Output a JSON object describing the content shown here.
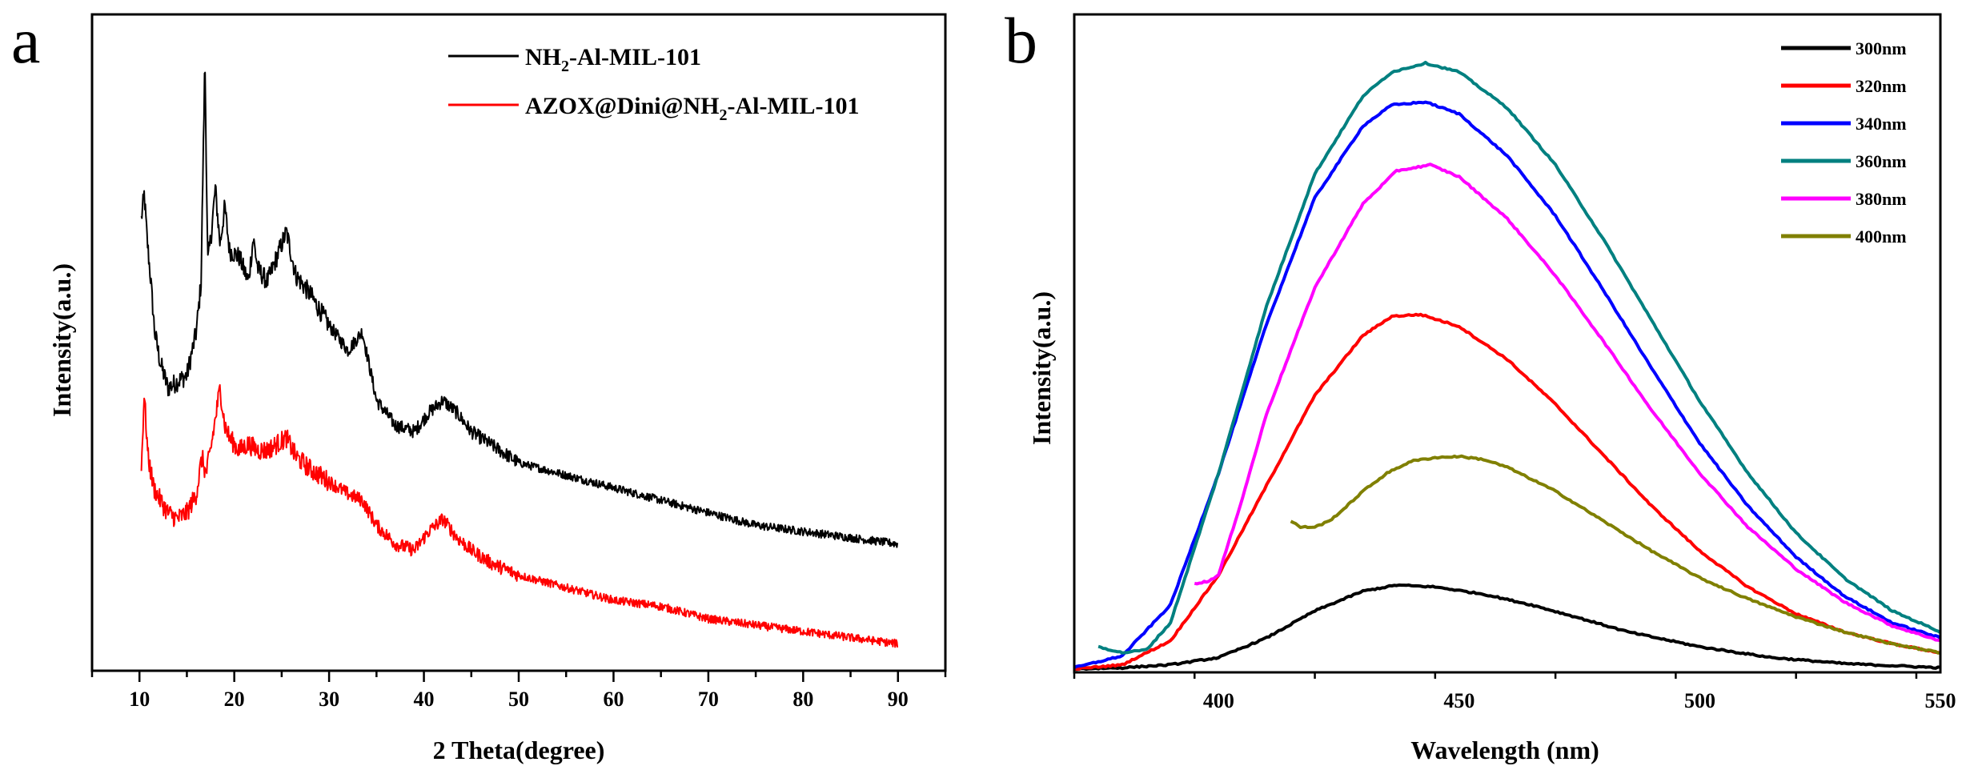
{
  "chart_data": [
    {
      "panel_label": "a",
      "type": "line",
      "title": "",
      "xlabel": "2 Theta(degree)",
      "ylabel": "Intensity(a.u.)",
      "xlim": [
        5,
        95
      ],
      "ylim": [
        0,
        100
      ],
      "xticks": [
        10,
        20,
        30,
        40,
        50,
        60,
        70,
        80,
        90
      ],
      "y_ticks_labeled": false,
      "legend_position": "top-right",
      "series": [
        {
          "name": "NH2-Al-MIL-101",
          "name_base": "NH",
          "name_sub": "2",
          "name_rest": "-Al-MIL-101",
          "color": "#000000",
          "x": [
            10.2,
            10.5,
            10.8,
            11.2,
            11.6,
            12.2,
            13.0,
            14.0,
            15.0,
            16.0,
            16.5,
            16.9,
            17.2,
            17.6,
            18.0,
            18.5,
            19.0,
            19.5,
            20.5,
            21.5,
            22.0,
            22.5,
            23.5,
            24.5,
            25.5,
            26.5,
            28.0,
            30.0,
            32.0,
            33.5,
            35.0,
            37.0,
            39.0,
            40.5,
            42.0,
            43.5,
            45.0,
            47.0,
            50.0,
            55.0,
            60.0,
            65.0,
            70.0,
            75.0,
            80.0,
            85.0,
            90.0
          ],
          "y": [
            70,
            74,
            67,
            60,
            52,
            47,
            43,
            44,
            45,
            52,
            60,
            96,
            63,
            68,
            75,
            66,
            72,
            65,
            64,
            60,
            67,
            62,
            60,
            64,
            68,
            61,
            58,
            53,
            49,
            52,
            41,
            37,
            36,
            39,
            41,
            39,
            36,
            34,
            31,
            29,
            27,
            25,
            23,
            21,
            20,
            19,
            18
          ]
        },
        {
          "name": "AZOX@Dini@NH2-Al-MIL-101",
          "name_base": "AZOX@Dini@NH",
          "name_sub": "2",
          "name_rest": "-Al-MIL-101",
          "color": "#ff0000",
          "x": [
            10.2,
            10.5,
            10.9,
            11.5,
            12.2,
            13.0,
            14.0,
            15.0,
            16.0,
            16.6,
            17.0,
            17.5,
            18.0,
            18.5,
            19.0,
            19.5,
            20.5,
            21.5,
            22.5,
            23.5,
            24.5,
            25.5,
            26.5,
            28.0,
            30.0,
            32.0,
            33.5,
            35.0,
            37.0,
            39.0,
            40.5,
            42.0,
            43.5,
            45.0,
            47.0,
            50.0,
            55.0,
            60.0,
            65.0,
            70.0,
            75.0,
            80.0,
            85.0,
            90.0
          ],
          "y": [
            30,
            42,
            32,
            27,
            25,
            23,
            22,
            23,
            26,
            32,
            29,
            33,
            38,
            43,
            37,
            35,
            33,
            34,
            33,
            33,
            34,
            35,
            32,
            30,
            28,
            26,
            25,
            21,
            18,
            17,
            20,
            22,
            19,
            17,
            15,
            13,
            11,
            9,
            8,
            6,
            5,
            4,
            3,
            2
          ]
        }
      ]
    },
    {
      "panel_label": "b",
      "type": "line",
      "title": "",
      "xlabel": "Wavelength (nm)",
      "ylabel": "Intensity(a.u.)",
      "xlim": [
        370,
        550
      ],
      "ylim": [
        0,
        100
      ],
      "xticks": [
        400,
        450,
        500,
        550
      ],
      "y_ticks_labeled": false,
      "legend_position": "top-right",
      "series": [
        {
          "name": "300nm",
          "color": "#000000",
          "x": [
            370,
            380,
            390,
            400,
            410,
            420,
            430,
            437,
            445,
            455,
            465,
            475,
            485,
            500,
            515,
            530,
            550
          ],
          "y": [
            0.3,
            0.5,
            1.0,
            2.2,
            5.5,
            10,
            13.3,
            14.3,
            14.0,
            12.8,
            11.0,
            8.8,
            6.5,
            4.0,
            2.2,
            1.2,
            0.5
          ]
        },
        {
          "name": "320nm",
          "color": "#ff0000",
          "x": [
            370,
            380,
            390,
            400,
            410,
            420,
            430,
            436,
            442,
            450,
            460,
            470,
            480,
            490,
            500,
            510,
            520,
            530,
            540,
            550
          ],
          "y": [
            0.3,
            1,
            5,
            16,
            31,
            46,
            56,
            59.2,
            59.5,
            57.5,
            52,
            44.5,
            36,
            27.5,
            20,
            14,
            9.5,
            6.5,
            4.5,
            3
          ]
        },
        {
          "name": "340nm",
          "color": "#0000ff",
          "x": [
            370,
            380,
            390,
            400,
            410,
            420,
            430,
            436,
            443,
            450,
            460,
            470,
            480,
            490,
            500,
            510,
            520,
            530,
            540,
            550
          ],
          "y": [
            0.5,
            2.5,
            11,
            33,
            58,
            79,
            91,
            94.5,
            95,
            93,
            86,
            76,
            63.5,
            50.5,
            38,
            27.5,
            19,
            12.5,
            8,
            5.5
          ]
        },
        {
          "name": "360nm",
          "color": "#008080",
          "x": [
            375,
            380,
            385,
            390,
            400,
            410,
            420,
            430,
            436,
            443,
            450,
            460,
            470,
            480,
            490,
            500,
            510,
            520,
            530,
            540,
            550
          ],
          "y": [
            4,
            3,
            3.5,
            8,
            33,
            61,
            83,
            96,
            100,
            101.5,
            100,
            94,
            84.5,
            72,
            58.5,
            45,
            33,
            23,
            15.5,
            10,
            6.5
          ]
        },
        {
          "name": "380nm",
          "color": "#ff00ff",
          "x": [
            395,
            398,
            400,
            405,
            410,
            420,
            430,
            437,
            444,
            450,
            460,
            470,
            480,
            490,
            500,
            510,
            520,
            530,
            540,
            550
          ],
          "y": [
            14.5,
            15,
            16,
            29,
            43,
            64,
            78,
            83.5,
            84.5,
            82.5,
            75.5,
            66,
            55,
            43.5,
            33,
            24,
            17,
            11.5,
            7.5,
            5
          ]
        },
        {
          "name": "400nm",
          "color": "#808000",
          "x": [
            415,
            417,
            420,
            423,
            426,
            430,
            435,
            440,
            445,
            450,
            455,
            460,
            470,
            480,
            490,
            500,
            510,
            520,
            530,
            540,
            550
          ],
          "y": [
            25,
            24,
            24,
            25,
            27,
            30,
            33,
            35,
            35.6,
            35.8,
            35.3,
            34,
            30,
            25,
            20,
            15.5,
            12,
            9,
            6.5,
            4.5,
            3
          ]
        }
      ]
    }
  ]
}
